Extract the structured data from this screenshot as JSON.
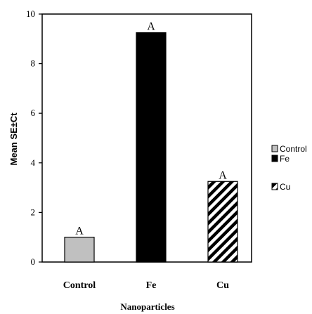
{
  "chart_data": {
    "type": "bar",
    "title": "",
    "xlabel": "Nanoparticles",
    "ylabel": "Mean SE±Ct",
    "categories": [
      "Control",
      "Fe",
      "Cu"
    ],
    "values": [
      1.0,
      9.25,
      3.25
    ],
    "data_labels": [
      "A",
      "A",
      "A"
    ],
    "ylim": [
      0,
      10
    ],
    "yticks": [
      "0",
      "2",
      "4",
      "6",
      "8",
      "10"
    ],
    "grid": false,
    "legend": {
      "position": "right",
      "entries": [
        "Control",
        "Fe",
        "Cu"
      ]
    },
    "fills": {
      "Control": "#c0c0c0",
      "Fe": "#000000",
      "Cu": "diagonal-hatch"
    }
  }
}
